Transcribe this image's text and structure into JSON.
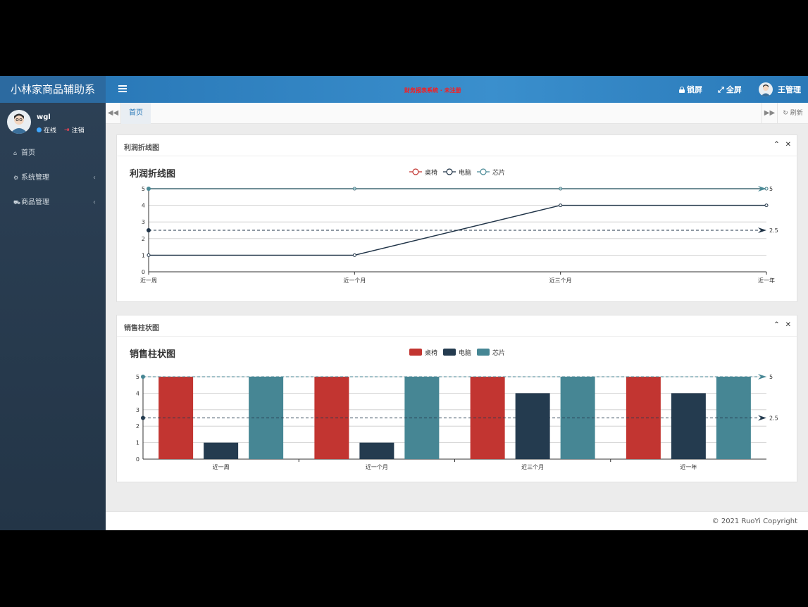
{
  "app": {
    "brand": "小林家商品辅助系"
  },
  "header": {
    "marquee": "财务报表系统 · 未注册",
    "lock_label": "锁屏",
    "fullscreen_label": "全屏",
    "user_name": "王管理"
  },
  "sidebar": {
    "user": {
      "name": "wgl",
      "status": "在线",
      "logout": "注销"
    },
    "items": [
      {
        "label": "首页",
        "icon": "home-icon"
      },
      {
        "label": "系统管理",
        "icon": "gear-icon"
      },
      {
        "label": "商品管理",
        "icon": "cart-icon"
      }
    ]
  },
  "tabs": {
    "home": "首页",
    "refresh": "刷新"
  },
  "panels": {
    "line": {
      "title": "利润折线图"
    },
    "bar": {
      "title": "销售柱状图"
    }
  },
  "footer": {
    "copyright": "© 2021 RuoYi Copyright"
  },
  "chart_data": [
    {
      "type": "line",
      "title": "利润折线图",
      "categories": [
        "近一周",
        "近一个月",
        "近三个月",
        "近一年"
      ],
      "series": [
        {
          "name": "桌椅",
          "values": [
            5,
            5,
            5,
            5
          ],
          "color": "#c23531"
        },
        {
          "name": "电脑",
          "values": [
            1,
            1,
            4,
            4
          ],
          "color": "#1f3347"
        },
        {
          "name": "芯片",
          "values": [
            5,
            5,
            5,
            5
          ],
          "color": "#4a8a96"
        }
      ],
      "y_ticks": [
        "0",
        "1",
        "2",
        "3",
        "4",
        "5"
      ],
      "ylim": [
        0,
        5
      ],
      "average_line": {
        "value": 2.5,
        "label": "2.5"
      },
      "max_line": {
        "value": 5,
        "label": "5"
      },
      "legend": "top-center",
      "grid": true
    },
    {
      "type": "bar",
      "title": "销售柱状图",
      "categories": [
        "近一周",
        "近一个月",
        "近三个月",
        "近一年"
      ],
      "series": [
        {
          "name": "桌椅",
          "values": [
            5,
            5,
            5,
            5
          ],
          "color": "#c23531"
        },
        {
          "name": "电脑",
          "values": [
            1,
            1,
            4,
            4
          ],
          "color": "#243b4f"
        },
        {
          "name": "芯片",
          "values": [
            5,
            5,
            5,
            5
          ],
          "color": "#468694"
        }
      ],
      "y_ticks": [
        "0",
        "1",
        "2",
        "3",
        "4",
        "5"
      ],
      "ylim": [
        0,
        5
      ],
      "average_line": {
        "value": 2.5,
        "label": "2.5"
      },
      "max_line": {
        "value": 5,
        "label": "5"
      },
      "legend": "top-center",
      "grid": true
    }
  ]
}
